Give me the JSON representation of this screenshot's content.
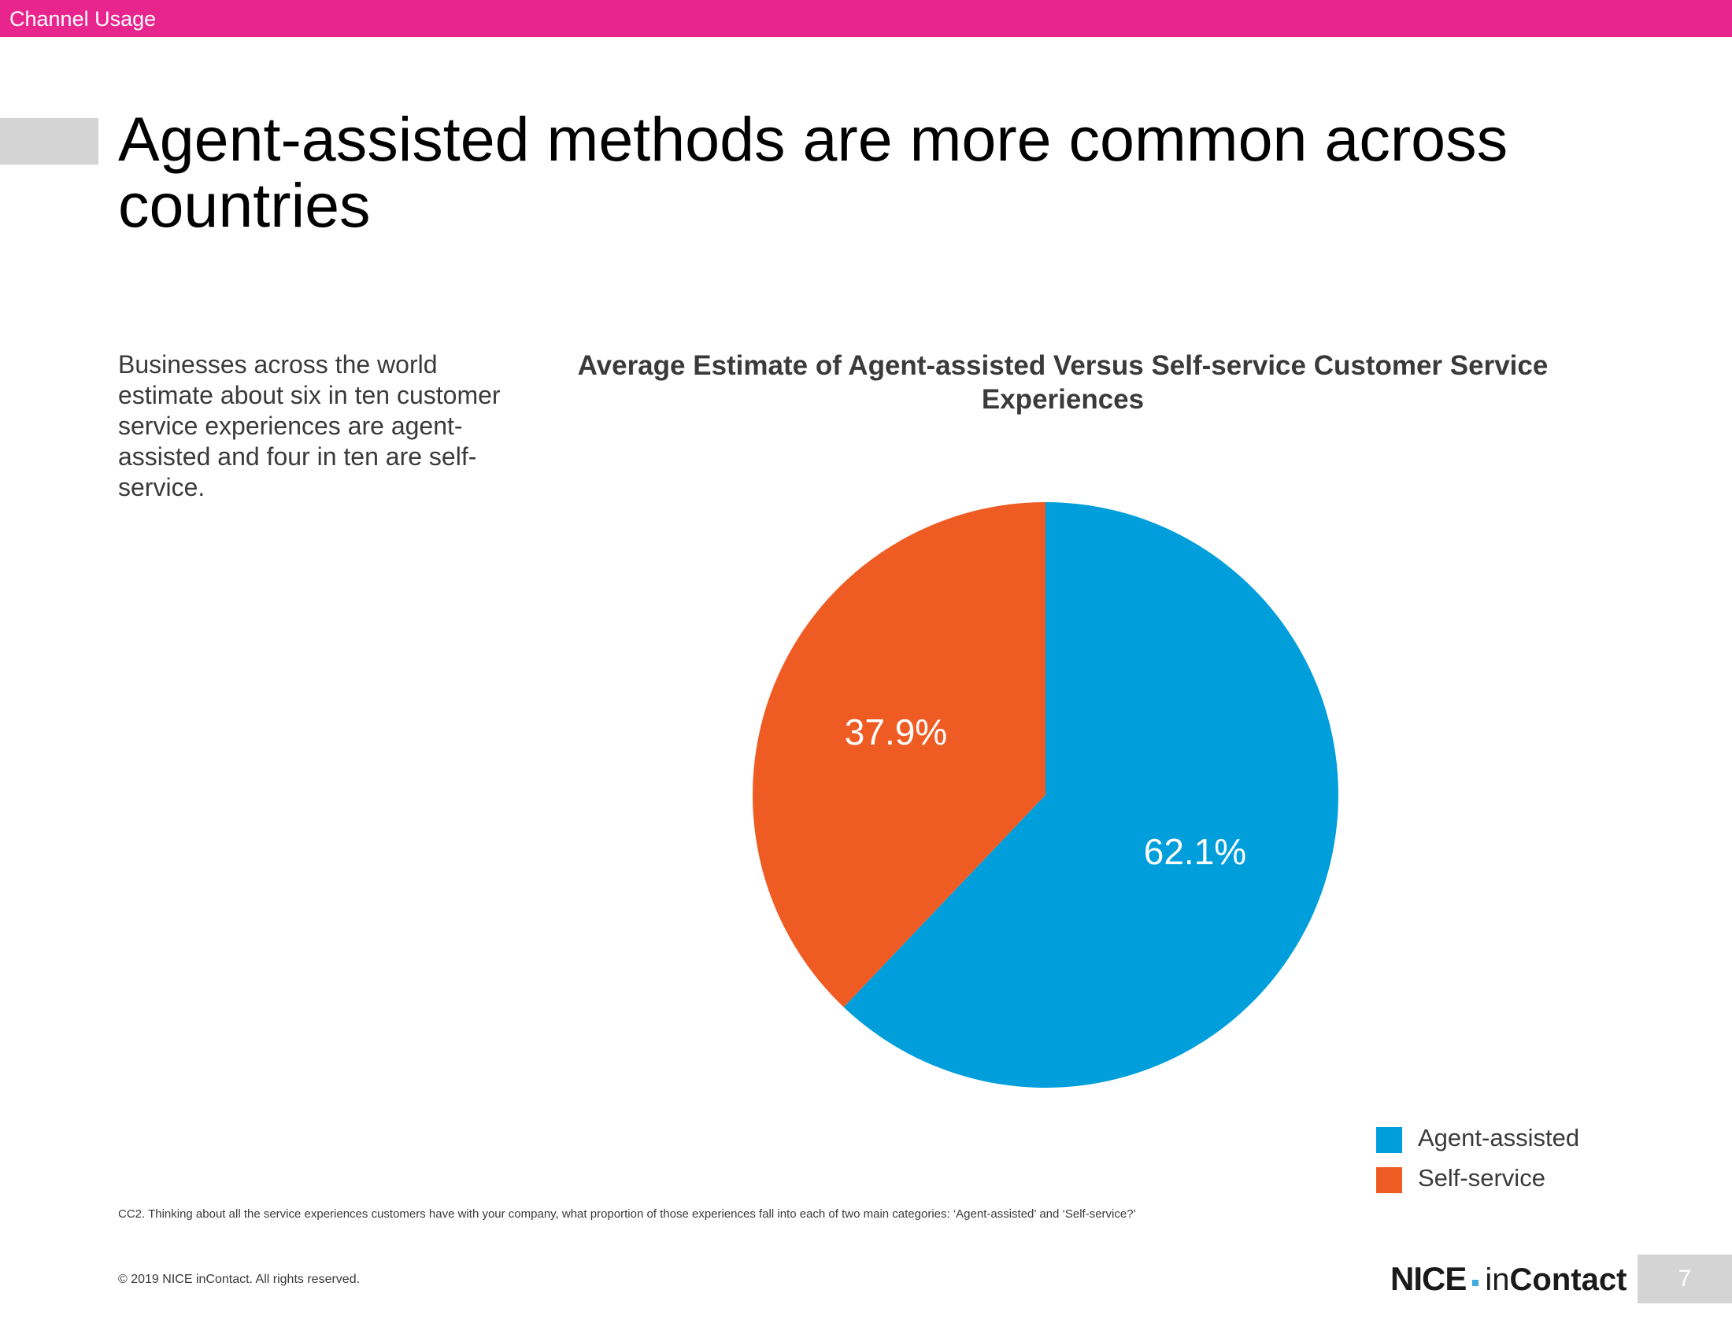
{
  "header": {
    "section_label": "Channel Usage"
  },
  "title": "Agent-assisted methods are more common across countries",
  "body_text": "Businesses across the world estimate about six in ten customer service experiences are agent-assisted and four in ten are self-service.",
  "colors": {
    "accent": "#E8258D",
    "agent_assisted": "#009FDB",
    "self_service": "#EE5C23",
    "marker_gray": "#D4D4D4"
  },
  "chart_data": {
    "type": "pie",
    "title": "Average Estimate of Agent-assisted Versus Self-service Customer Service Experiences",
    "slices": [
      {
        "label": "Agent-assisted",
        "value": 62.1,
        "display": "62.1%",
        "color": "#009FDB"
      },
      {
        "label": "Self-service",
        "value": 37.9,
        "display": "37.9%",
        "color": "#EE5C23"
      }
    ],
    "start": "12 o'clock",
    "direction": "clockwise",
    "legend_position": "bottom-right"
  },
  "footnote": "CC2. Thinking about all the service experiences customers have with your company, what proportion of those experiences fall into each of two main categories: ‘Agent-assisted’ and ‘Self-service?’",
  "footer": {
    "copyright": "© 2019 NICE inContact. All rights reserved.",
    "logo_nice": "NICE",
    "logo_in": "in",
    "logo_contact": "Contact",
    "page_number": "7"
  }
}
